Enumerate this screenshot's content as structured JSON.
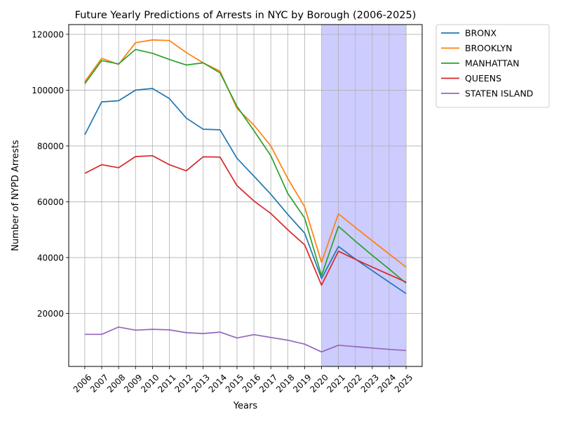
{
  "chart_data": {
    "type": "line",
    "title": "Future Yearly Predictions of Arrests in NYC by Borough (2006-2025)",
    "xlabel": "Years",
    "ylabel": "Number of NYPD Arrests",
    "categories": [
      "2006",
      "2007",
      "2008",
      "2009",
      "2010",
      "2011",
      "2012",
      "2013",
      "2014",
      "2015",
      "2016",
      "2017",
      "2018",
      "2019",
      "2020",
      "2021",
      "2022",
      "2023",
      "2024",
      "2025"
    ],
    "yticks": [
      20000,
      40000,
      60000,
      80000,
      100000,
      120000
    ],
    "ylim": [
      1000,
      123500
    ],
    "grid": true,
    "legend_position": "outside-top-right",
    "highlight_region": {
      "from": "2020",
      "to": "2025",
      "color": "#ccccff"
    },
    "series": [
      {
        "name": "BRONX",
        "color": "#1f77b4",
        "values": [
          84000,
          95800,
          96200,
          100000,
          100600,
          97000,
          90000,
          86000,
          85800,
          75600,
          69200,
          62700,
          55500,
          48800,
          32500,
          44000,
          39500,
          35300,
          31200,
          27100
        ]
      },
      {
        "name": "BROOKLYN",
        "color": "#ff7f0e",
        "values": [
          103000,
          111400,
          109200,
          117000,
          118000,
          117800,
          113500,
          109800,
          106800,
          93500,
          87500,
          80000,
          68400,
          58200,
          38300,
          55700,
          50800,
          46000,
          41300,
          36600
        ]
      },
      {
        "name": "MANHATTAN",
        "color": "#2ca02c",
        "values": [
          102300,
          110600,
          109400,
          114600,
          113200,
          111000,
          109000,
          109800,
          106200,
          94200,
          85500,
          76500,
          63000,
          54200,
          33500,
          51200,
          45900,
          40800,
          35900,
          30800
        ]
      },
      {
        "name": "QUEENS",
        "color": "#d62728",
        "values": [
          70200,
          73300,
          72200,
          76200,
          76500,
          73300,
          71100,
          76100,
          76000,
          65800,
          60300,
          55800,
          50000,
          44600,
          30100,
          42300,
          39400,
          36600,
          33900,
          31200
        ]
      },
      {
        "name": "STATEN ISLAND",
        "color": "#9467bd",
        "values": [
          12500,
          12500,
          15100,
          14000,
          14300,
          14100,
          13100,
          12800,
          13300,
          11200,
          12400,
          11400,
          10400,
          9000,
          6200,
          8600,
          8100,
          7600,
          7100,
          6700
        ]
      }
    ]
  }
}
